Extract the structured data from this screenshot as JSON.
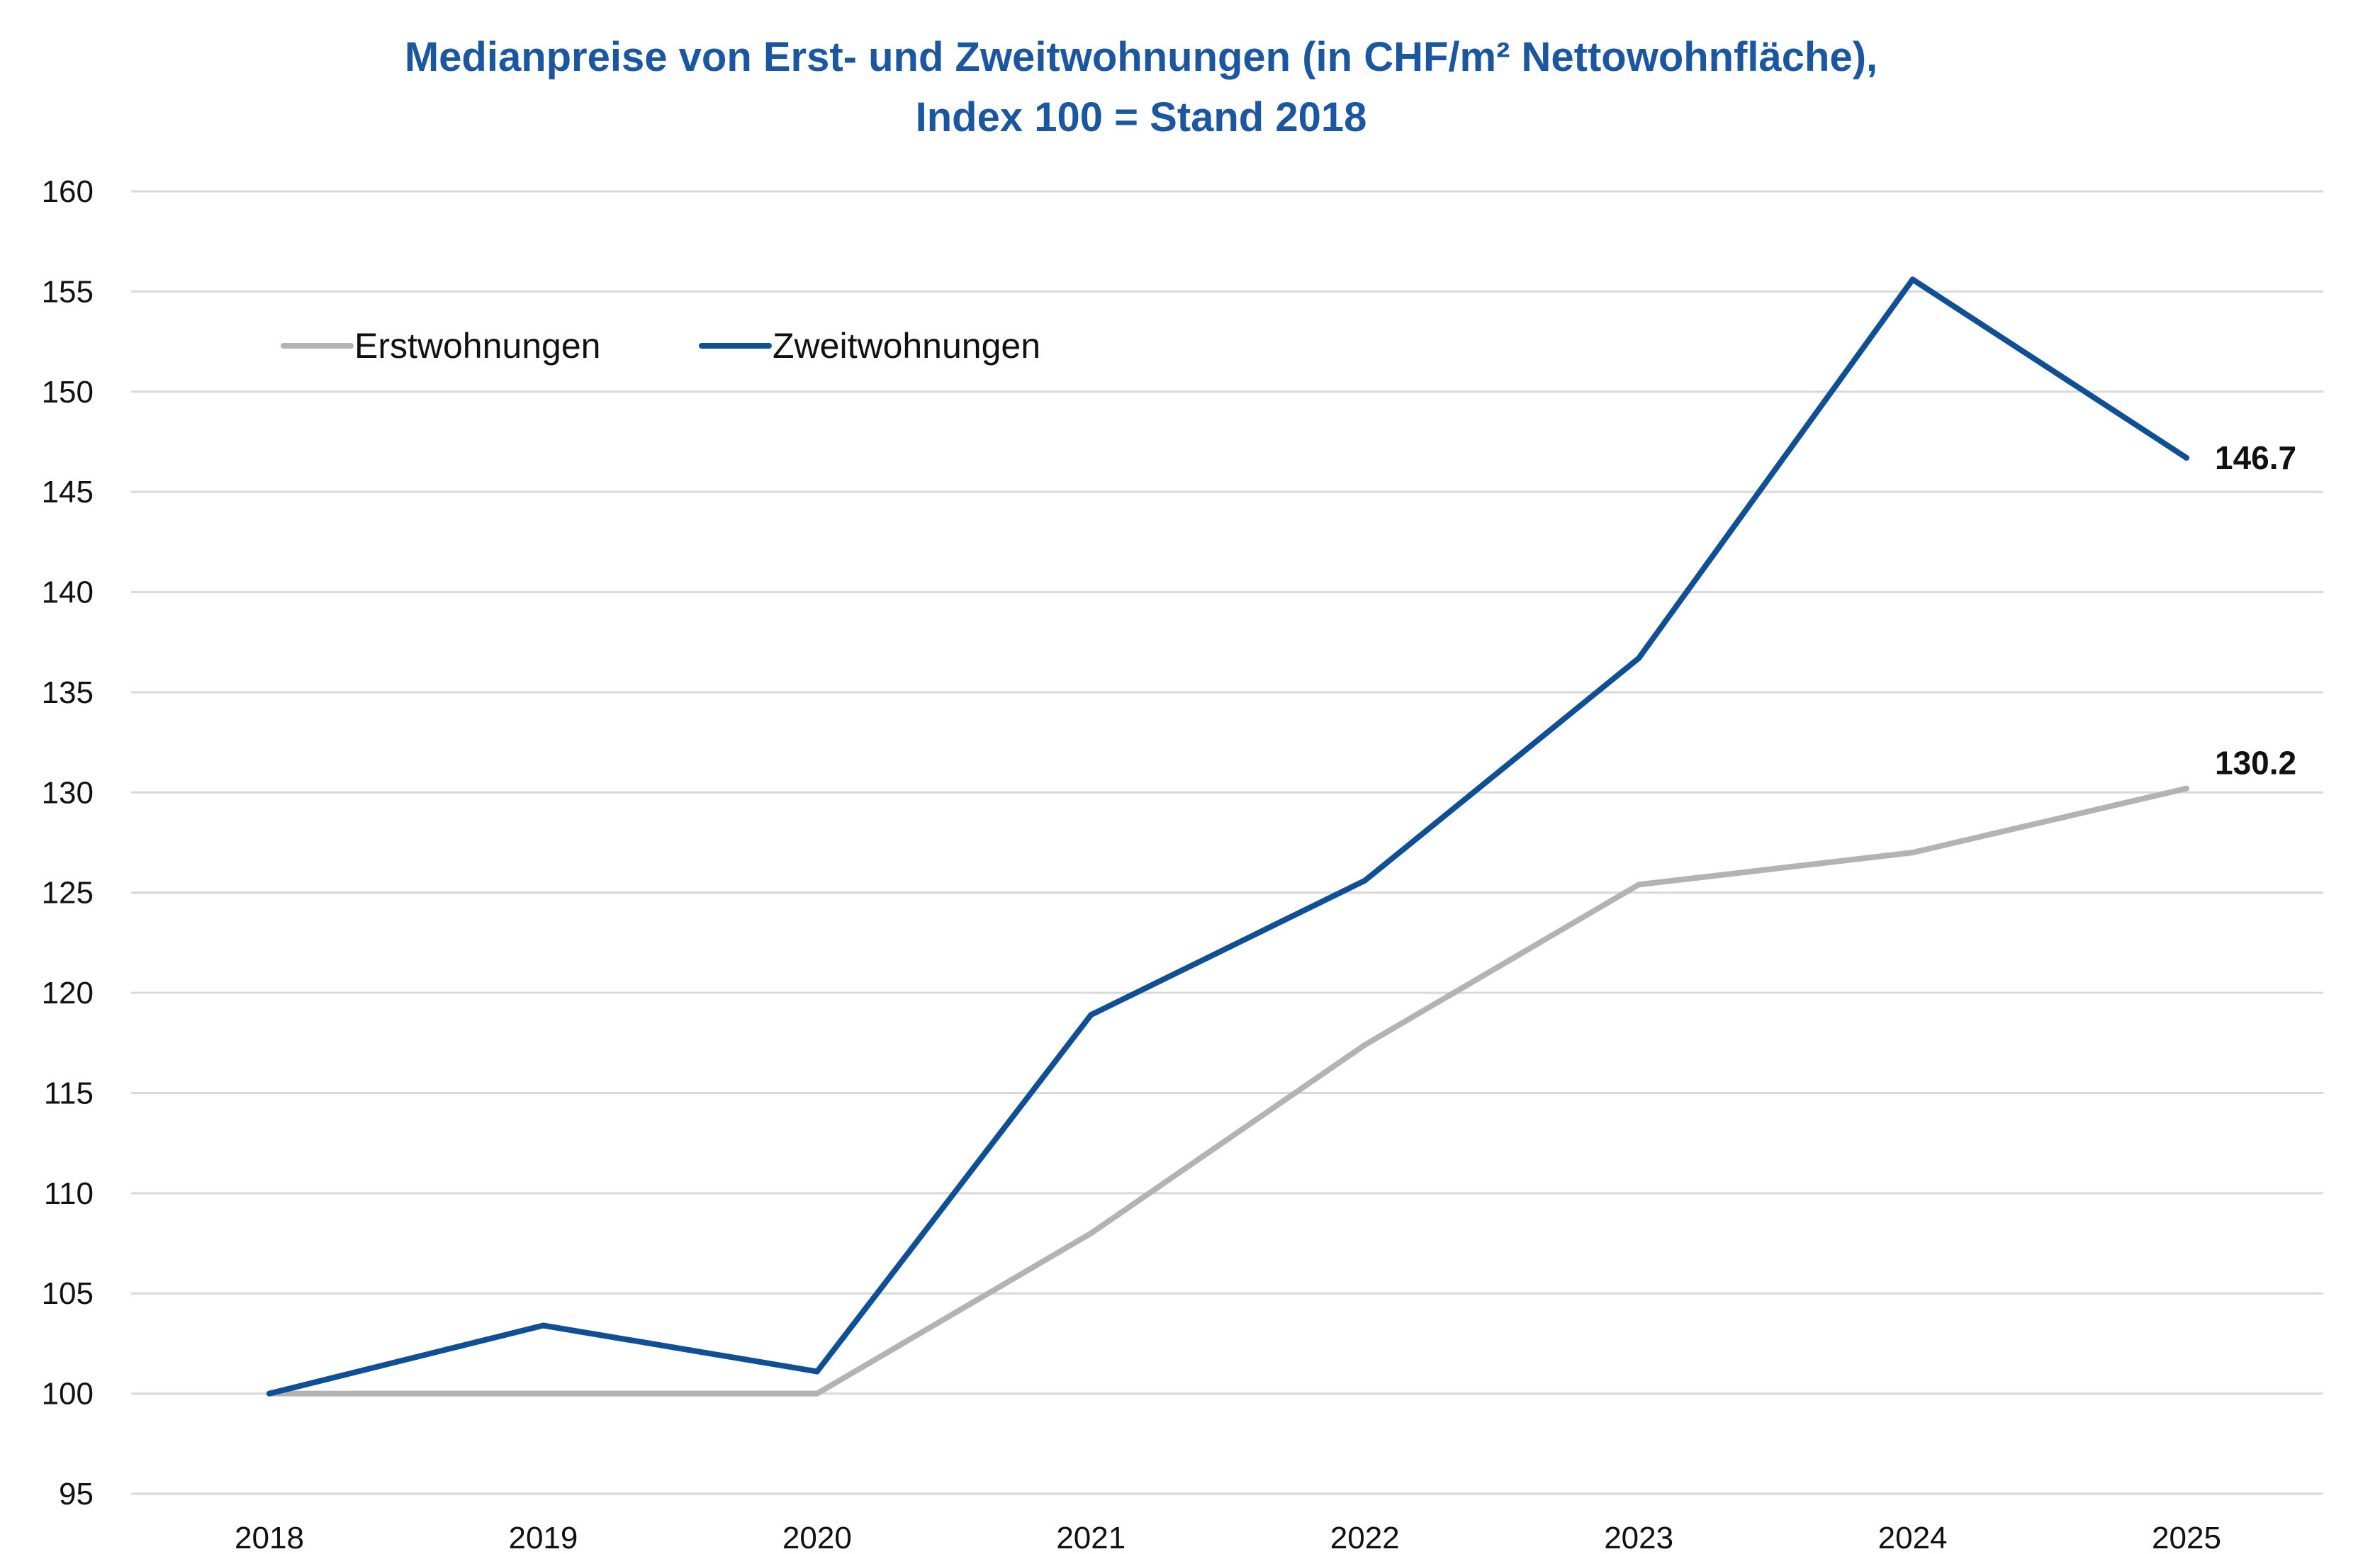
{
  "chart_data": {
    "type": "line",
    "title_line1": "Medianpreise von Erst- und Zweitwohnungen (in CHF/m² Nettowohnfläche),",
    "title_line2": "Index 100 = Stand 2018",
    "xlabel": "",
    "ylabel": "",
    "x": [
      "2018",
      "2019",
      "2020",
      "2021",
      "2022",
      "2023",
      "2024",
      "2025"
    ],
    "ylim": [
      95,
      160
    ],
    "yticks": [
      "95",
      "100",
      "105",
      "110",
      "115",
      "120",
      "125",
      "130",
      "135",
      "140",
      "145",
      "150",
      "155",
      "160"
    ],
    "grid": true,
    "legend_position": "top-left",
    "series": [
      {
        "name": "Erstwohnungen",
        "color": "#b3b3b3",
        "values": [
          100.0,
          100.0,
          100.0,
          108.0,
          117.4,
          125.4,
          127.0,
          130.2
        ],
        "end_label": "130.2"
      },
      {
        "name": "Zweitwohnungen",
        "color": "#0f4f96",
        "values": [
          100.0,
          103.4,
          101.1,
          118.9,
          125.6,
          136.7,
          155.6,
          146.7
        ],
        "end_label": "146.7"
      }
    ]
  }
}
